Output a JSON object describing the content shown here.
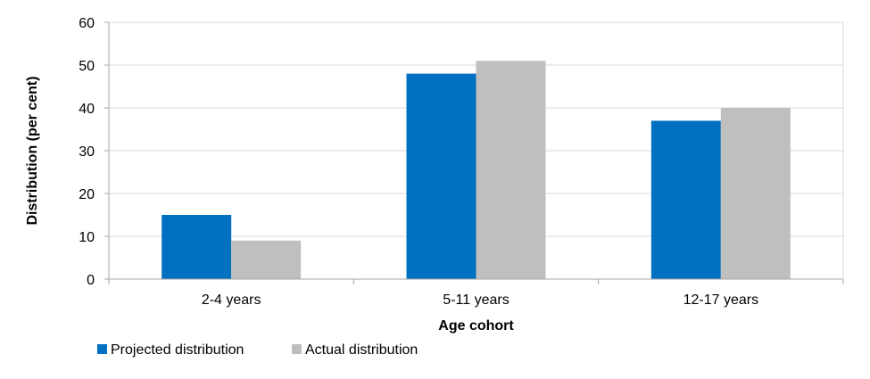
{
  "chart_data": {
    "type": "bar",
    "title": "",
    "xlabel": "Age cohort",
    "ylabel": "Distribution (per cent)",
    "categories": [
      "2-4 years",
      "5-11 years",
      "12-17 years"
    ],
    "series": [
      {
        "name": "Projected distribution",
        "values": [
          15,
          48,
          37
        ],
        "color": "#0070c0"
      },
      {
        "name": "Actual distribution",
        "values": [
          9,
          51,
          40
        ],
        "color": "#bfbfc0"
      }
    ],
    "ylim": [
      0,
      60
    ],
    "yticks": [
      "0",
      "10",
      "20",
      "30",
      "40",
      "50",
      "60"
    ],
    "grid": true,
    "legend_position": "bottom-left",
    "colors": {
      "gridline": "#d9d9d9",
      "axis": "#a6a6a6"
    }
  }
}
